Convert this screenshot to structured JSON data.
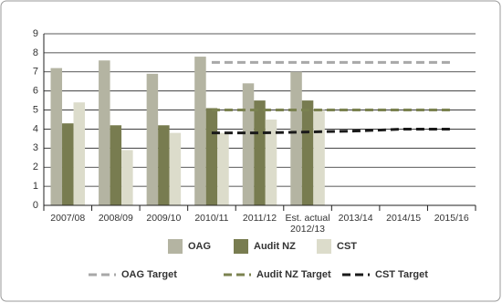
{
  "chart_data": {
    "type": "bar",
    "categories": [
      "2007/08",
      "2008/09",
      "2009/10",
      "2010/11",
      "2011/12",
      "Est. actual 2012/13",
      "2013/14",
      "2014/15",
      "2015/16"
    ],
    "series": [
      {
        "name": "OAG",
        "color": "#b4b4a2",
        "values": [
          7.2,
          7.6,
          6.9,
          7.8,
          6.4,
          7.0,
          null,
          null,
          null
        ]
      },
      {
        "name": "Audit NZ",
        "color": "#787c50",
        "values": [
          4.3,
          4.2,
          4.2,
          5.1,
          5.5,
          5.5,
          null,
          null,
          null
        ]
      },
      {
        "name": "CST",
        "color": "#dcdccb",
        "values": [
          5.4,
          2.9,
          3.8,
          3.8,
          4.5,
          5.0,
          null,
          null,
          null
        ]
      },
      {
        "name": "OAG Target",
        "type": "line",
        "color": "#a8a8a8",
        "values": [
          null,
          null,
          null,
          7.5,
          7.5,
          7.5,
          7.5,
          7.5,
          7.5
        ]
      },
      {
        "name": "Audit NZ Target",
        "type": "line",
        "color": "#7b8250",
        "values": [
          null,
          null,
          null,
          5.0,
          5.0,
          5.0,
          5.0,
          5.0,
          5.0
        ]
      },
      {
        "name": "CST Target",
        "type": "line",
        "color": "#1a1a1a",
        "values": [
          null,
          null,
          null,
          3.8,
          3.8,
          3.85,
          3.9,
          4.0,
          4.0
        ]
      }
    ],
    "ylim": [
      0,
      9
    ],
    "yticks": [
      0,
      1,
      2,
      3,
      4,
      5,
      6,
      7,
      8,
      9
    ],
    "grid": true
  }
}
